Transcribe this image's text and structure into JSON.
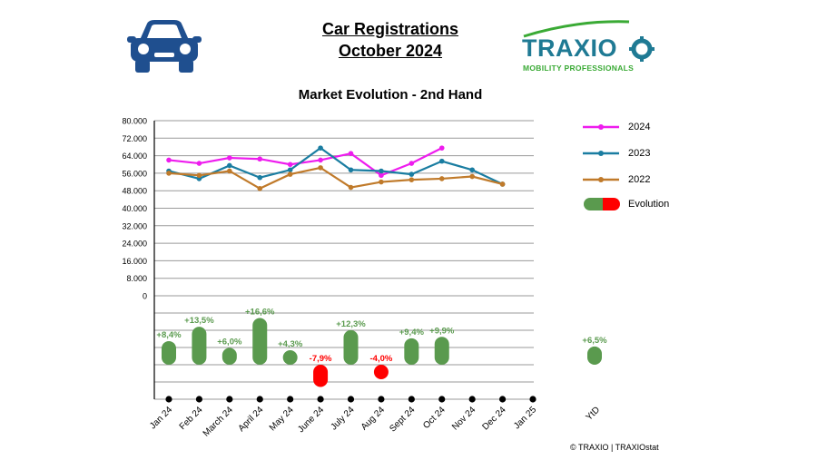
{
  "header": {
    "title_line1": "Car Registrations",
    "title_line2": "October 2024",
    "logo_text": "TRAXIO",
    "logo_subtitle": "MOBILITY PROFESSIONALS",
    "car_icon": "car-icon"
  },
  "footer": {
    "copyright": "© TRAXIO | TRAXIOstat"
  },
  "colors": {
    "2024": "#ee1cee",
    "2023": "#1a7da1",
    "2022": "#c07a2a",
    "positive": "#5a9a4e",
    "negative": "#ff0000"
  },
  "chart_data": {
    "type": "line",
    "title": "Market Evolution - 2nd Hand",
    "categories": [
      "Jan 24",
      "Feb 24",
      "March 24",
      "April 24",
      "May 24",
      "June 24",
      "July 24",
      "Aug 24",
      "Sept 24",
      "Oct 24",
      "Nov 24",
      "Dec 24",
      "Jan 25"
    ],
    "ylim": [
      0,
      80000
    ],
    "yticks": [
      "80.000",
      "72.000",
      "64.000",
      "56.000",
      "48.000",
      "40.000",
      "32.000",
      "24.000",
      "16.000",
      "8.000",
      "0"
    ],
    "legend_position": "right",
    "grid": true,
    "series": [
      {
        "name": "2024",
        "values": [
          62000,
          60500,
          63000,
          62500,
          60000,
          62000,
          65000,
          55000,
          60500,
          67500,
          null,
          null,
          null
        ]
      },
      {
        "name": "2023",
        "values": [
          57000,
          53500,
          59500,
          54000,
          57500,
          67500,
          57500,
          57000,
          55500,
          61500,
          57500,
          51000,
          null
        ]
      },
      {
        "name": "2022",
        "values": [
          56000,
          55000,
          57000,
          49000,
          55500,
          58500,
          49500,
          52000,
          53000,
          53500,
          54500,
          51000,
          null
        ]
      }
    ],
    "evolution": {
      "legend_label": "Evolution",
      "values": [
        8.4,
        13.5,
        6.0,
        16.6,
        4.3,
        -7.9,
        12.3,
        -4.0,
        9.4,
        9.9,
        null,
        null,
        null
      ],
      "labels": [
        "+8,4%",
        "+13,5%",
        "+6,0%",
        "+16,6%",
        "+4,3%",
        "-7,9%",
        "+12,3%",
        "-4,0%",
        "+9,4%",
        "+9,9%",
        "",
        "",
        ""
      ],
      "ytd_label": "YtD",
      "ytd_value": 6.5,
      "ytd_text": "+6,5%"
    }
  }
}
